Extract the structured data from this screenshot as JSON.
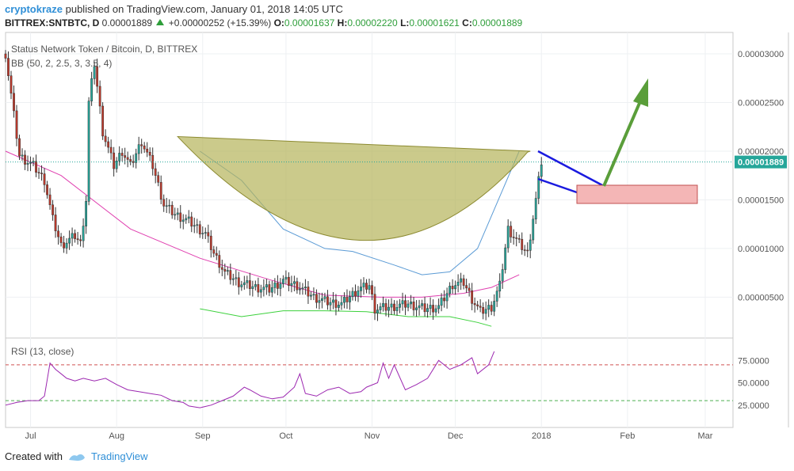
{
  "header": {
    "author": "cryptokraze",
    "published": "published on TradingView.com, January 01, 2018 14:05 UTC"
  },
  "quote": {
    "symbol": "BITTREX:SNTBTC, D",
    "last": "0.00001889",
    "change": "+0.00000252 (+15.39%)",
    "o_label": "O:",
    "o": "0.00001637",
    "h_label": "H:",
    "h": "0.00002220",
    "l_label": "L:",
    "l": "0.00001621",
    "c_label": "C:",
    "c": "0.00001889"
  },
  "legend": {
    "main": "Status Network Token / Bitcoin, D, BITTREX",
    "bb": "BB (50, 2, 2.5, 3, 3.5, 4)",
    "rsi": "RSI (13, close)"
  },
  "footer": {
    "created_with": "Created with",
    "brand": "TradingView"
  },
  "colors": {
    "up": "#26a69a",
    "down": "#c0392b",
    "cup": "#b5b45a",
    "basis": "#e040b0",
    "band1": "#3cd13c",
    "band2": "#5b9bd5",
    "band3": "#f0a040",
    "band4": "#ffffff",
    "rsi": "#9c27b0",
    "arrow": "#5a9e3a",
    "trend": "#1a1adf",
    "box": "#f4b6b6"
  },
  "chart_data": [
    {
      "type": "candlestick",
      "title": "Status Network Token / Bitcoin, D, BITTREX",
      "x_ticks": [
        "Jul",
        "Aug",
        "Sep",
        "Oct",
        "Nov",
        "Dec",
        "2018",
        "Feb",
        "Mar"
      ],
      "y_ticks": [
        "0.00000500",
        "0.00001000",
        "0.00001500",
        "0.00002000",
        "0.00002500",
        "0.00003000"
      ],
      "last_price_label": "0.00001889",
      "ylim": [
        8e-07,
        3.22e-05
      ],
      "x_range": [
        "2017-06-22",
        "2018-03-11"
      ],
      "price_path": [
        [
          "2017-06-22",
          3e-05
        ],
        [
          "2017-06-27",
          1.95e-05
        ],
        [
          "2017-07-02",
          1.85e-05
        ],
        [
          "2017-07-06",
          1.7e-05
        ],
        [
          "2017-07-09",
          1.3e-05
        ],
        [
          "2017-07-12",
          1.03e-05
        ],
        [
          "2017-07-17",
          1.13e-05
        ],
        [
          "2017-07-19",
          1.05e-05
        ],
        [
          "2017-07-21",
          1.5e-05
        ],
        [
          "2017-07-22",
          2.5e-05
        ],
        [
          "2017-07-24",
          2.9e-05
        ],
        [
          "2017-07-27",
          2.2e-05
        ],
        [
          "2017-07-31",
          1.85e-05
        ],
        [
          "2017-08-03",
          2e-05
        ],
        [
          "2017-08-06",
          1.85e-05
        ],
        [
          "2017-08-10",
          2.1e-05
        ],
        [
          "2017-08-14",
          1.85e-05
        ],
        [
          "2017-08-18",
          1.45e-05
        ],
        [
          "2017-08-22",
          1.35e-05
        ],
        [
          "2017-08-27",
          1.28e-05
        ],
        [
          "2017-09-02",
          1.15e-05
        ],
        [
          "2017-09-05",
          9.5e-06
        ],
        [
          "2017-09-09",
          7.5e-06
        ],
        [
          "2017-09-14",
          6.5e-06
        ],
        [
          "2017-09-20",
          6e-06
        ],
        [
          "2017-09-25",
          5.8e-06
        ],
        [
          "2017-09-30",
          6.7e-06
        ],
        [
          "2017-10-05",
          6.2e-06
        ],
        [
          "2017-10-11",
          5e-06
        ],
        [
          "2017-10-16",
          4.5e-06
        ],
        [
          "2017-10-21",
          4.3e-06
        ],
        [
          "2017-10-27",
          5.8e-06
        ],
        [
          "2017-10-31",
          6.2e-06
        ],
        [
          "2017-11-02",
          3.8e-06
        ],
        [
          "2017-11-08",
          4e-06
        ],
        [
          "2017-11-14",
          4.3e-06
        ],
        [
          "2017-11-20",
          3.8e-06
        ],
        [
          "2017-11-25",
          4e-06
        ],
        [
          "2017-11-30",
          6.3e-06
        ],
        [
          "2017-12-04",
          6.5e-06
        ],
        [
          "2017-12-07",
          4.8e-06
        ],
        [
          "2017-12-10",
          3.5e-06
        ],
        [
          "2017-12-14",
          4e-06
        ],
        [
          "2017-12-17",
          6.2e-06
        ],
        [
          "2017-12-20",
          1.2e-05
        ],
        [
          "2017-12-24",
          1.05e-05
        ],
        [
          "2017-12-27",
          9.5e-06
        ],
        [
          "2017-12-30",
          1.5e-05
        ],
        [
          "2018-01-01",
          1.89e-05
        ]
      ],
      "series": [
        {
          "name": "BB basis",
          "values": [
            [
              0,
              2e-05
            ],
            [
              20,
              1.75e-05
            ],
            [
              45,
              1.2e-05
            ],
            [
              70,
              9e-06
            ],
            [
              95,
              6.8e-06
            ],
            [
              115,
              5.2e-06
            ],
            [
              135,
              5e-06
            ],
            [
              150,
              5e-06
            ],
            [
              165,
              5.4e-06
            ],
            [
              175,
              6e-06
            ],
            [
              185,
              7.3e-06
            ]
          ]
        },
        {
          "name": "BB upper 2",
          "values": [
            [
              70,
              2e-05
            ],
            [
              85,
              1.7e-05
            ],
            [
              100,
              1.2e-05
            ],
            [
              115,
              1e-05
            ],
            [
              125,
              9.7e-06
            ],
            [
              140,
              8.3e-06
            ],
            [
              150,
              7.3e-06
            ],
            [
              160,
              7.6e-06
            ],
            [
              170,
              1e-05
            ],
            [
              185,
              2e-05
            ]
          ]
        },
        {
          "name": "BB lower 2",
          "values": [
            [
              70,
              3.8e-06
            ],
            [
              85,
              3e-06
            ],
            [
              100,
              3.6e-06
            ],
            [
              115,
              3.6e-06
            ],
            [
              130,
              3.5e-06
            ],
            [
              145,
              3e-06
            ],
            [
              160,
              3e-06
            ],
            [
              170,
              2.4e-06
            ],
            [
              175,
              2e-06
            ]
          ]
        }
      ]
    },
    {
      "type": "line",
      "title": "RSI (13, close)",
      "y_ticks": [
        "25.0000",
        "50.0000",
        "75.0000"
      ],
      "ylim": [
        0,
        100
      ],
      "levels": [
        30,
        70
      ],
      "values": [
        [
          0,
          25
        ],
        [
          4,
          28
        ],
        [
          8,
          30
        ],
        [
          12,
          30
        ],
        [
          14,
          35
        ],
        [
          16,
          72
        ],
        [
          18,
          65
        ],
        [
          20,
          60
        ],
        [
          22,
          55
        ],
        [
          25,
          52
        ],
        [
          28,
          55
        ],
        [
          32,
          52
        ],
        [
          36,
          55
        ],
        [
          40,
          48
        ],
        [
          44,
          42
        ],
        [
          48,
          40
        ],
        [
          52,
          38
        ],
        [
          56,
          36
        ],
        [
          60,
          30
        ],
        [
          64,
          28
        ],
        [
          66,
          24
        ],
        [
          70,
          22
        ],
        [
          74,
          25
        ],
        [
          78,
          30
        ],
        [
          82,
          35
        ],
        [
          86,
          45
        ],
        [
          88,
          42
        ],
        [
          92,
          35
        ],
        [
          96,
          32
        ],
        [
          100,
          34
        ],
        [
          104,
          45
        ],
        [
          106,
          60
        ],
        [
          108,
          38
        ],
        [
          112,
          35
        ],
        [
          116,
          42
        ],
        [
          120,
          45
        ],
        [
          124,
          38
        ],
        [
          128,
          40
        ],
        [
          130,
          45
        ],
        [
          134,
          50
        ],
        [
          136,
          72
        ],
        [
          138,
          55
        ],
        [
          140,
          70
        ],
        [
          144,
          42
        ],
        [
          148,
          48
        ],
        [
          152,
          55
        ],
        [
          156,
          75
        ],
        [
          160,
          65
        ],
        [
          164,
          70
        ],
        [
          168,
          78
        ],
        [
          170,
          60
        ],
        [
          174,
          70
        ],
        [
          176,
          85
        ]
      ]
    }
  ]
}
